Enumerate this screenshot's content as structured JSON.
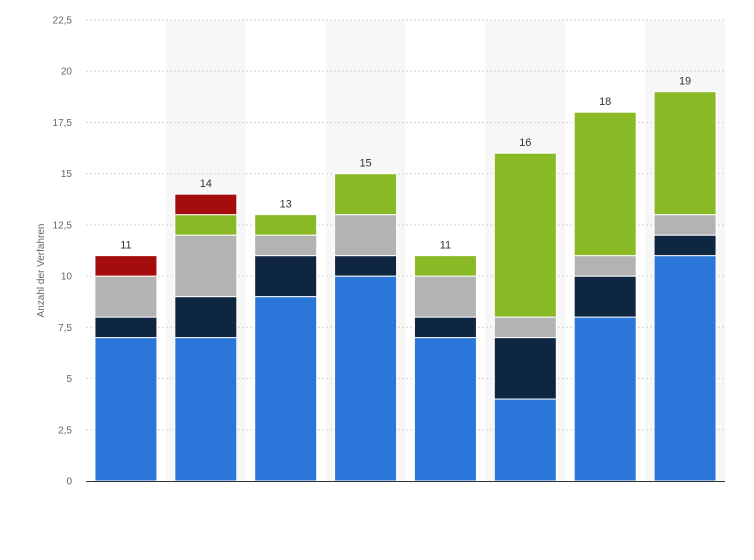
{
  "chart_data": {
    "type": "bar",
    "stacked": true,
    "categories": [
      "",
      "",
      "",
      "",
      "",
      "",
      "",
      ""
    ],
    "ylabel": "Anzahl der Verfahren",
    "ylim": [
      0,
      22.5
    ],
    "y_ticks": [
      "0",
      "2,5",
      "5",
      "7,5",
      "10",
      "12,5",
      "15",
      "17,5",
      "20",
      "22,5"
    ],
    "y_tick_values": [
      0,
      2.5,
      5,
      7.5,
      10,
      12.5,
      15,
      17.5,
      20,
      22.5
    ],
    "grid": true,
    "series": [
      {
        "color": "#2a76d9",
        "values": [
          7,
          7,
          9,
          10,
          7,
          4,
          8,
          11
        ]
      },
      {
        "color": "#0f2640",
        "values": [
          1,
          2,
          2,
          1,
          1,
          3,
          2,
          1
        ]
      },
      {
        "color": "#b3b3b3",
        "values": [
          2,
          3,
          1,
          2,
          2,
          1,
          1,
          1
        ]
      },
      {
        "color": "#8ab926",
        "values": [
          0,
          1,
          1,
          2,
          1,
          8,
          7,
          6
        ]
      },
      {
        "color": "#a50d0d",
        "values": [
          1,
          1,
          0,
          0,
          0,
          0,
          0,
          0
        ]
      }
    ],
    "totals": [
      "11",
      "14",
      "13",
      "15",
      "11",
      "16",
      "18",
      "19"
    ]
  }
}
